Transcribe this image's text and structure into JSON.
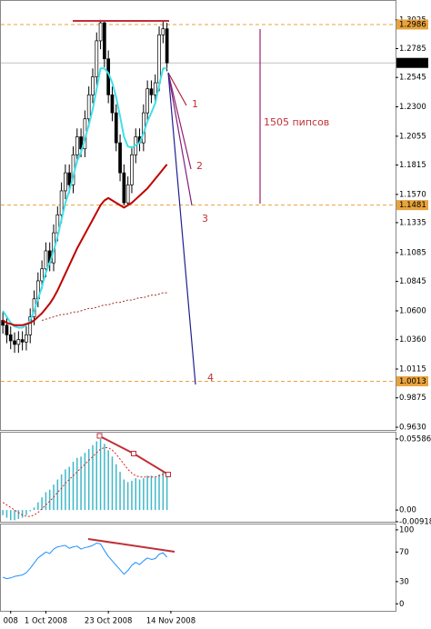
{
  "chart_data": [
    {
      "type": "candlestick",
      "open": [
        1.052,
        1.048,
        1.04,
        1.035,
        1.032,
        1.036,
        1.034,
        1.04,
        1.055,
        1.07,
        1.085,
        1.095,
        1.11,
        1.1,
        1.125,
        1.14,
        1.16,
        1.175,
        1.165,
        1.19,
        1.205,
        1.195,
        1.22,
        1.24,
        1.255,
        1.285,
        1.3,
        1.27,
        1.24,
        1.225,
        1.2,
        1.175,
        1.15,
        1.165,
        1.19,
        1.205,
        1.2,
        1.225,
        1.245,
        1.24,
        1.25,
        1.29,
        1.295
      ],
      "high": [
        1.059,
        1.055,
        1.047,
        1.042,
        1.043,
        1.043,
        1.047,
        1.062,
        1.077,
        1.092,
        1.102,
        1.117,
        1.117,
        1.132,
        1.147,
        1.167,
        1.182,
        1.182,
        1.197,
        1.212,
        1.212,
        1.227,
        1.247,
        1.262,
        1.292,
        1.3025,
        1.302,
        1.277,
        1.247,
        1.232,
        1.207,
        1.182,
        1.172,
        1.197,
        1.212,
        1.212,
        1.232,
        1.252,
        1.252,
        1.257,
        1.297,
        1.3013,
        1.3
      ],
      "low": [
        1.041,
        1.033,
        1.028,
        1.025,
        1.025,
        1.027,
        1.027,
        1.033,
        1.048,
        1.063,
        1.078,
        1.088,
        1.093,
        1.093,
        1.118,
        1.133,
        1.153,
        1.158,
        1.158,
        1.183,
        1.188,
        1.188,
        1.213,
        1.233,
        1.248,
        1.278,
        1.263,
        1.233,
        1.218,
        1.193,
        1.168,
        1.1481,
        1.1485,
        1.158,
        1.183,
        1.193,
        1.193,
        1.218,
        1.233,
        1.233,
        1.243,
        1.283,
        1.2596
      ],
      "close": [
        1.048,
        1.04,
        1.035,
        1.032,
        1.036,
        1.034,
        1.04,
        1.055,
        1.07,
        1.085,
        1.095,
        1.11,
        1.1,
        1.125,
        1.14,
        1.16,
        1.175,
        1.165,
        1.19,
        1.205,
        1.195,
        1.22,
        1.24,
        1.255,
        1.285,
        1.3,
        1.27,
        1.24,
        1.225,
        1.2,
        1.175,
        1.15,
        1.165,
        1.19,
        1.205,
        1.2,
        1.225,
        1.245,
        1.24,
        1.25,
        1.29,
        1.295,
        1.2666
      ],
      "up_color": "#ffffff",
      "down_color": "#000000",
      "series": [
        {
          "color": "#40e0e8",
          "style": "thick",
          "values": [
            1.06,
            1.055,
            1.05,
            1.047,
            1.046,
            1.046,
            1.048,
            1.052,
            1.06,
            1.07,
            1.08,
            1.092,
            1.1,
            1.11,
            1.122,
            1.136,
            1.15,
            1.16,
            1.172,
            1.185,
            1.192,
            1.203,
            1.215,
            1.228,
            1.245,
            1.262,
            1.262,
            1.258,
            1.25,
            1.238,
            1.222,
            1.205,
            1.197,
            1.196,
            1.198,
            1.2,
            1.208,
            1.218,
            1.225,
            1.233,
            1.248,
            1.262,
            1.262
          ]
        },
        {
          "color": "#c00000",
          "style": "thick",
          "values": [
            1.052,
            1.05,
            1.049,
            1.048,
            1.048,
            1.048,
            1.049,
            1.05,
            1.052,
            1.055,
            1.058,
            1.062,
            1.066,
            1.071,
            1.077,
            1.084,
            1.091,
            1.098,
            1.105,
            1.112,
            1.118,
            1.124,
            1.13,
            1.136,
            1.142,
            1.148,
            1.152,
            1.154,
            1.152,
            1.15,
            1.148,
            1.146,
            1.148,
            1.15,
            1.153,
            1.156,
            1.159,
            1.162,
            1.166,
            1.17,
            1.174,
            1.178,
            1.182
          ]
        },
        {
          "color": "#a03020",
          "style": "dotted",
          "values": [
            null,
            null,
            null,
            null,
            null,
            null,
            null,
            null,
            null,
            null,
            1.052,
            1.053,
            1.054,
            1.055,
            1.056,
            1.057,
            1.057,
            1.058,
            1.059,
            1.059,
            1.06,
            1.061,
            1.062,
            1.062,
            1.063,
            1.064,
            1.065,
            1.065,
            1.066,
            1.067,
            1.067,
            1.068,
            1.069,
            1.069,
            1.07,
            1.071,
            1.071,
            1.072,
            1.073,
            1.073,
            1.074,
            1.075,
            1.075
          ]
        }
      ],
      "levels": [
        {
          "value": 1.2986,
          "color": "#e8a33d",
          "style": "dashed",
          "label_bg": "#e8a33d",
          "label_text": "#ffffff"
        },
        {
          "value": 1.2666,
          "color": "#c0c0c0",
          "style": "solid",
          "label_bg": "#000000",
          "label_text": "#ffffff"
        },
        {
          "value": 1.1481,
          "color": "#e8a33d",
          "style": "dashed",
          "label_bg": "#e8a33d",
          "label_text": "#ffffff"
        },
        {
          "value": 1.0013,
          "color": "#e8a33d",
          "style": "dashed",
          "label_bg": "#e8a33d",
          "label_text": "#ffffff"
        }
      ],
      "annotations": [
        "1",
        "2",
        "3",
        "4",
        "1505 пипсов"
      ],
      "xlim": [
        -0.5,
        100.5
      ],
      "ylim": [
        0.9615,
        1.3175
      ],
      "yticks": [
        1.3025,
        1.2785,
        1.2545,
        {
          "value": 1.23,
          "label": "1.2300"
        },
        1.2055,
        1.1815,
        {
          "value": 1.157,
          "label": "1.1570"
        },
        1.1335,
        1.1085,
        1.0845,
        {
          "value": 1.06,
          "label": "1.0600"
        },
        {
          "value": 1.036,
          "label": "1.0360"
        },
        1.0115,
        0.9875,
        {
          "value": 0.963,
          "label": "0.9630"
        }
      ]
    },
    {
      "type": "bar",
      "values": [
        -0.004,
        -0.006,
        -0.008,
        -0.008,
        -0.007,
        -0.006,
        -0.004,
        -0.001,
        0.002,
        0.006,
        0.01,
        0.014,
        0.016,
        0.02,
        0.024,
        0.028,
        0.032,
        0.034,
        0.038,
        0.041,
        0.042,
        0.045,
        0.048,
        0.051,
        0.054,
        0.0558,
        0.052,
        0.047,
        0.042,
        0.036,
        0.03,
        0.024,
        0.022,
        0.023,
        0.025,
        0.024,
        0.025,
        0.027,
        0.027,
        0.026,
        0.028,
        0.031,
        0.028
      ],
      "color": "#40b8c8",
      "series": [
        {
          "color": "#e02020",
          "style": "dotted",
          "values": [
            0.006,
            0.004,
            0.002,
            0.0,
            -0.002,
            -0.004,
            -0.005,
            -0.005,
            -0.004,
            -0.002,
            0.001,
            0.004,
            0.007,
            0.01,
            0.014,
            0.017,
            0.021,
            0.024,
            0.027,
            0.03,
            0.033,
            0.036,
            0.039,
            0.042,
            0.045,
            0.048,
            0.049,
            0.049,
            0.047,
            0.044,
            0.04,
            0.036,
            0.032,
            0.029,
            0.027,
            0.026,
            0.026,
            0.026,
            0.026,
            0.026,
            0.027,
            0.028,
            0.029
          ]
        }
      ],
      "xlim": [
        -0.5,
        100.5
      ],
      "ylim": [
        -0.0092,
        0.0601
      ],
      "yticks": [
        0.05586,
        {
          "value": 0,
          "label": "0.00"
        },
        -0.00918
      ]
    },
    {
      "type": "line",
      "series": [
        {
          "color": "#1e90ff",
          "style": "thin",
          "values": [
            36,
            34,
            35,
            37,
            38,
            39,
            42,
            48,
            55,
            62,
            66,
            70,
            68,
            74,
            77,
            78,
            79,
            75,
            77,
            78,
            74,
            76,
            77,
            79,
            82,
            81,
            72,
            64,
            58,
            52,
            46,
            40,
            45,
            52,
            56,
            53,
            58,
            62,
            60,
            61,
            67,
            69,
            63
          ]
        }
      ],
      "xlim": [
        -0.5,
        100.5
      ],
      "ylim": [
        -9.5,
        104.8
      ],
      "yticks": [
        100,
        70,
        30,
        0
      ],
      "xticks": [
        {
          "value": 2,
          "label": "008"
        },
        {
          "value": 11,
          "label": "1 Oct 2008"
        },
        {
          "value": 27,
          "label": "23 Oct 2008"
        },
        {
          "value": 43,
          "label": "14 Nov 2008"
        }
      ]
    }
  ]
}
